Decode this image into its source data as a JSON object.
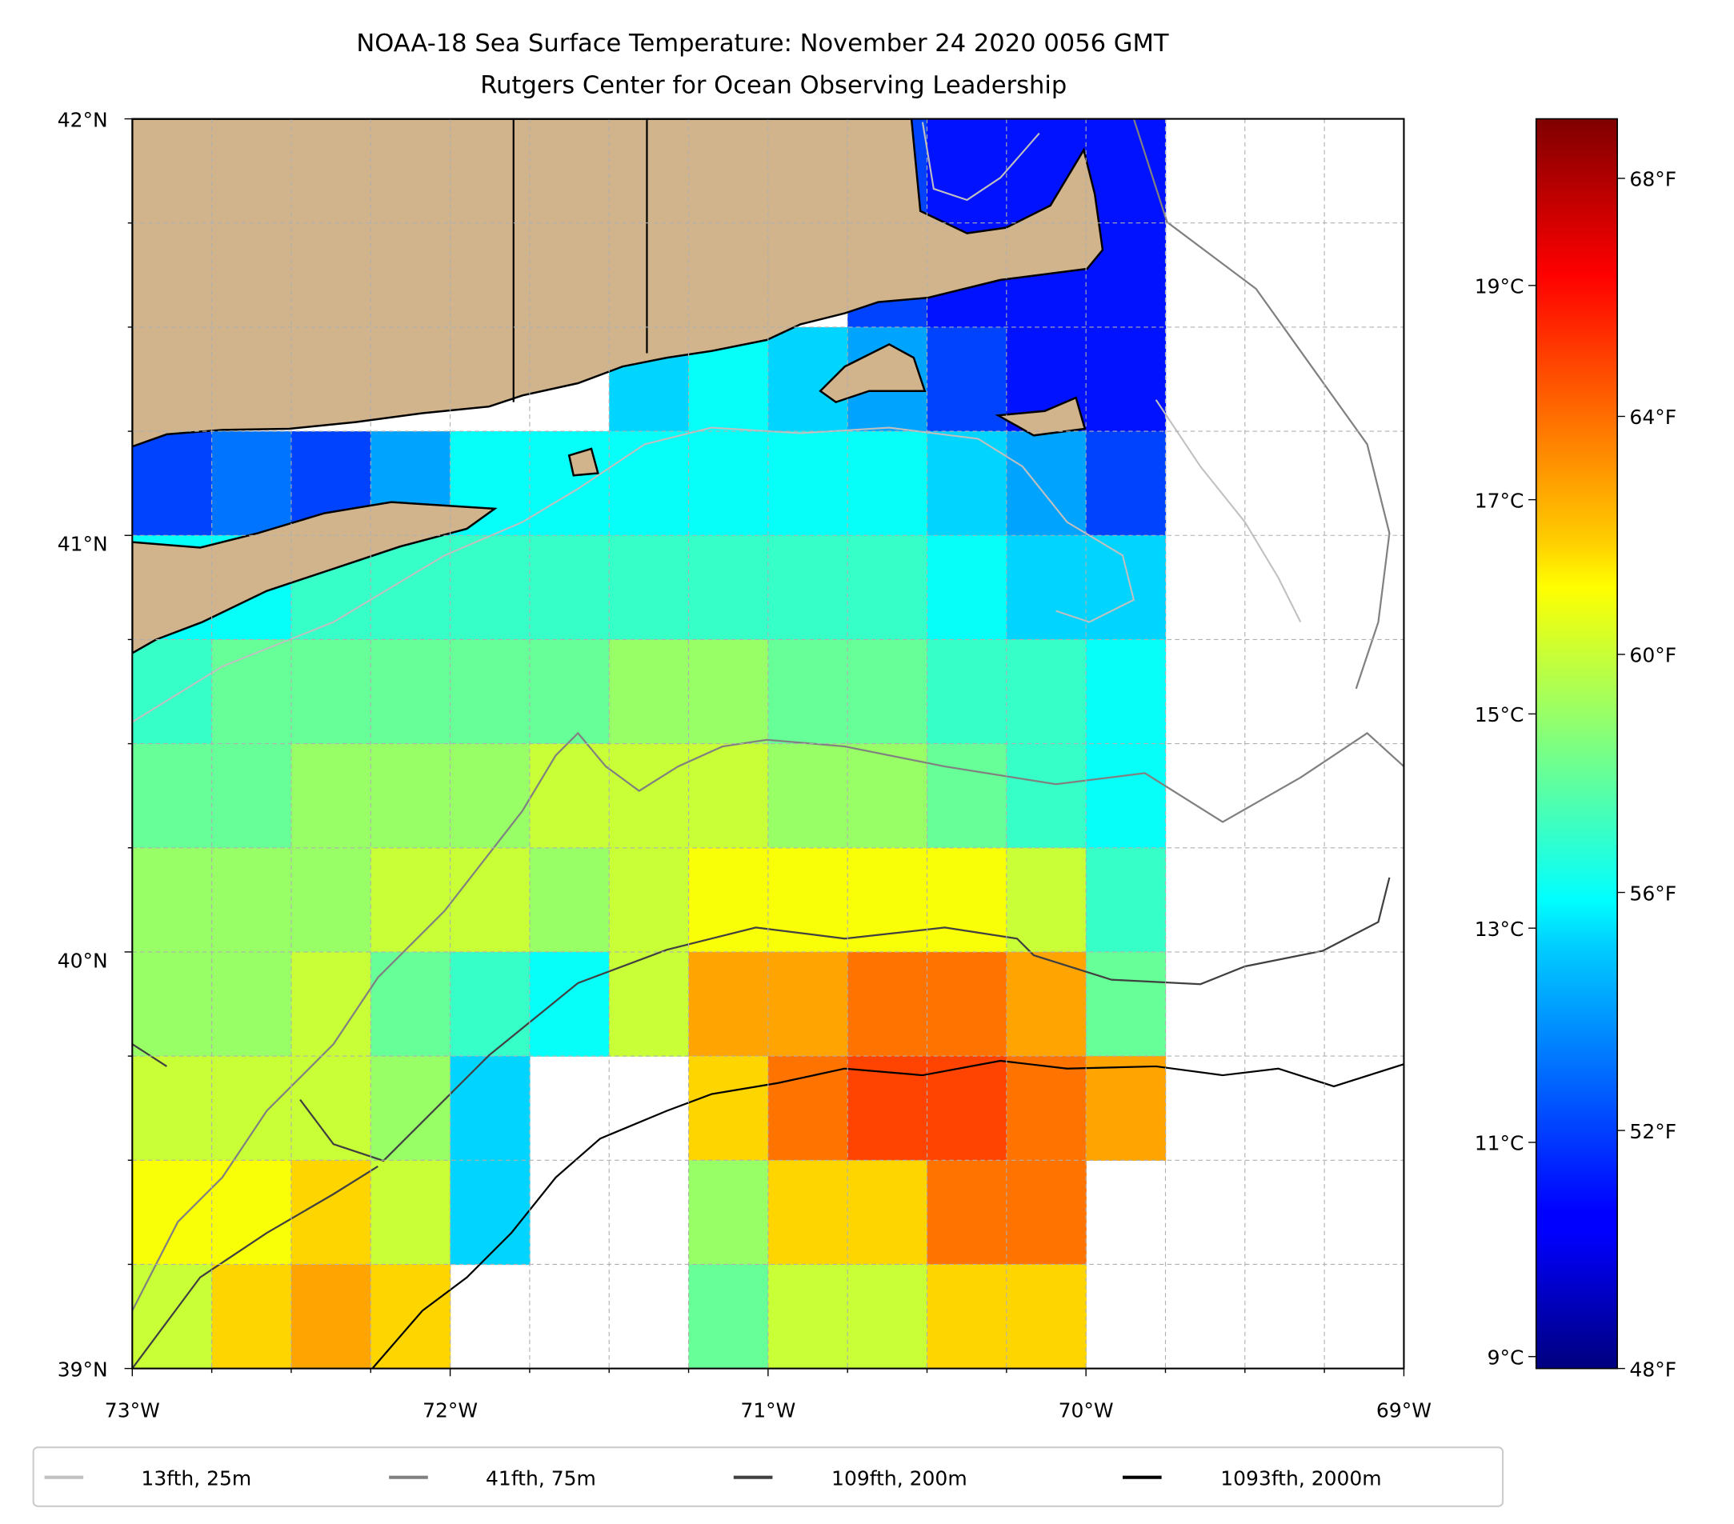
{
  "title_line1": "NOAA-18 Sea Surface Temperature: November 24 2020 0056 GMT",
  "title_line2": "Rutgers Center for Ocean Observing Leadership",
  "colors": {
    "land": "#d2b48c",
    "contour_25m": "#c0c0c0",
    "contour_75m": "#808080",
    "contour_200m": "#404040",
    "contour_2000m": "#000000"
  },
  "chart_data": {
    "type": "heatmap",
    "title": "NOAA-18 Sea Surface Temperature: November 24 2020 0056 GMT",
    "subtitle": "Rutgers Center for Ocean Observing Leadership",
    "xlim": [
      -73,
      -69
    ],
    "ylim": [
      39,
      42
    ],
    "x_ticks": [
      "73°W",
      "72°W",
      "71°W",
      "70°W",
      "69°W"
    ],
    "y_ticks": [
      "42°N",
      "41°N",
      "40°N",
      "39°N"
    ],
    "grid": [
      [
        null,
        null,
        null,
        null,
        null,
        null,
        null,
        null,
        null,
        52,
        51,
        51,
        51,
        null,
        null,
        null
      ],
      [
        null,
        null,
        null,
        null,
        null,
        null,
        52,
        null,
        null,
        52,
        51,
        51,
        51,
        null,
        null,
        null
      ],
      [
        null,
        null,
        null,
        null,
        null,
        null,
        55,
        56,
        55,
        54,
        52,
        51,
        51,
        null,
        null,
        null
      ],
      [
        52,
        53,
        52,
        54,
        56,
        56,
        56,
        56,
        56,
        56,
        55,
        54,
        52,
        null,
        null,
        null
      ],
      [
        56,
        56,
        57,
        57,
        57,
        57,
        57,
        57,
        57,
        57,
        56,
        55,
        55,
        null,
        null,
        null
      ],
      [
        57,
        58,
        58,
        58,
        58,
        58,
        59,
        59,
        58,
        58,
        57,
        57,
        56,
        null,
        null,
        null
      ],
      [
        58,
        58,
        59,
        59,
        59,
        60,
        60,
        60,
        59,
        59,
        58,
        57,
        56,
        null,
        null,
        null
      ],
      [
        59,
        59,
        59,
        60,
        60,
        59,
        60,
        61,
        61,
        61,
        61,
        60,
        57,
        null,
        null,
        null
      ],
      [
        59,
        59,
        60,
        58,
        57,
        56,
        60,
        63,
        63,
        64,
        64,
        63,
        58,
        null,
        null,
        null
      ],
      [
        60,
        60,
        60,
        59,
        55,
        null,
        null,
        62,
        64,
        65,
        65,
        64,
        63,
        null,
        null,
        null
      ],
      [
        61,
        61,
        62,
        60,
        55,
        null,
        null,
        59,
        62,
        62,
        64,
        64,
        null,
        null,
        null,
        null
      ],
      [
        60,
        62,
        63,
        62,
        null,
        null,
        null,
        58,
        60,
        60,
        62,
        62,
        null,
        null,
        null,
        null
      ]
    ],
    "colormap": "jet",
    "color_range_F": [
      48,
      69
    ],
    "colorbar_ticks_F": [
      "68°F",
      "64°F",
      "60°F",
      "56°F",
      "52°F",
      "48°F"
    ],
    "colorbar_ticks_F_values": [
      68,
      64,
      60,
      56,
      52,
      48
    ],
    "colorbar_ticks_C": [
      "19°C",
      "17°C",
      "15°C",
      "13°C",
      "11°C",
      "9°C"
    ],
    "colorbar_ticks_C_values": [
      19,
      17,
      15,
      13,
      11,
      9
    ],
    "grid_resolution_deg": 0.25,
    "grid_note_units": "°F, rows from 42°N southward, cols from 73°W eastward",
    "legend": {
      "placement": "bottom",
      "entries": [
        {
          "label": "13fth, 25m",
          "color": "#c0c0c0"
        },
        {
          "label": "41fth, 75m",
          "color": "#808080"
        },
        {
          "label": "109fth, 200m",
          "color": "#404040"
        },
        {
          "label": "1093fth, 2000m",
          "color": "#000000"
        }
      ]
    }
  }
}
